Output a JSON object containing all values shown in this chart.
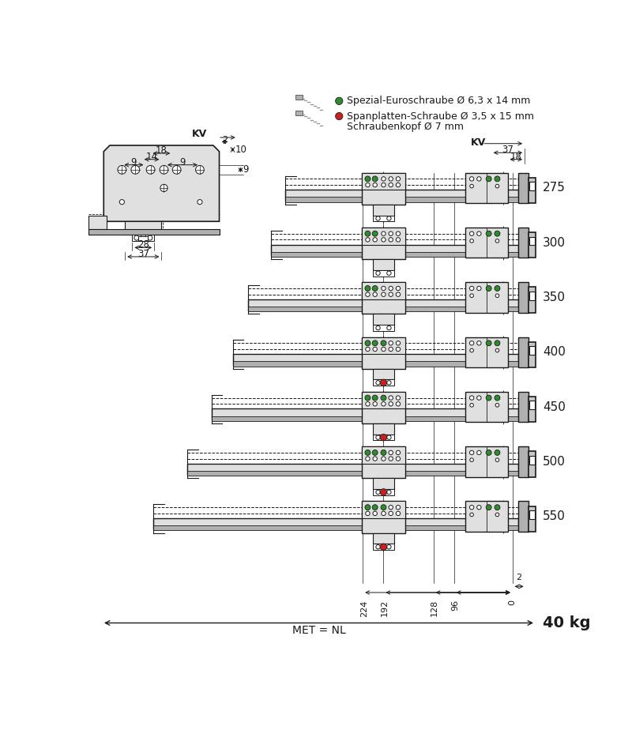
{
  "bg_color": "#ffffff",
  "line_color": "#1a1a1a",
  "gray_fill": "#c8c8c8",
  "light_gray": "#e0e0e0",
  "mid_gray": "#b0b0b0",
  "green_color": "#2e8b2e",
  "red_color": "#cc2020",
  "drawer_lengths": [
    275,
    300,
    350,
    400,
    450,
    500,
    550
  ],
  "legend_line1": "Spezial-Euroschraube Ø 6,3 x 14 mm",
  "legend_line2": "Spanplatten-Schraube Ø 3,5 x 15 mm",
  "legend_line3": "Schraubenkopf Ø 7 mm",
  "bottom_label": "MET = NL",
  "weight_label": "40 kg",
  "kv_label": "KV"
}
